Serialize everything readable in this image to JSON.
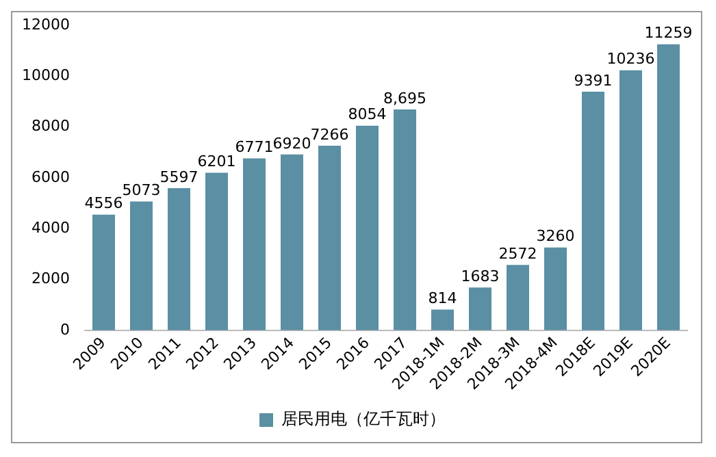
{
  "chart_data": {
    "type": "bar",
    "categories": [
      "2009",
      "2010",
      "2011",
      "2012",
      "2013",
      "2014",
      "2015",
      "2016",
      "2017",
      "2018-1M",
      "2018-2M",
      "2018-3M",
      "2018-4M",
      "2018E",
      "2019E",
      "2020E"
    ],
    "series": [
      {
        "name": "居民用电（亿千瓦时）",
        "color": "#5b8fa3",
        "values": [
          4556,
          5073,
          5597,
          6201,
          6771,
          6920,
          7266,
          8054,
          8695,
          814,
          1683,
          2572,
          3260,
          9391,
          10236,
          11259
        ],
        "value_labels": [
          "4556",
          "5073",
          "5597",
          "6201",
          "6771",
          "6920",
          "7266",
          "8054",
          "8,695",
          "814",
          "1683",
          "2572",
          "3260",
          "9391",
          "10236",
          "11259"
        ]
      }
    ],
    "ylim": [
      0,
      12000
    ],
    "yticks": [
      0,
      2000,
      4000,
      6000,
      8000,
      10000,
      12000
    ],
    "grid": false,
    "legend": "bottom"
  }
}
